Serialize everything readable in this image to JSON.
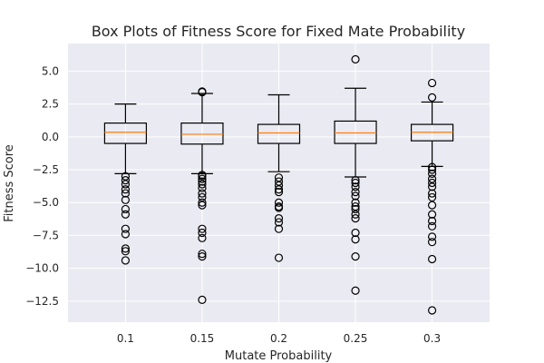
{
  "chart_data": {
    "type": "box",
    "title": "Box Plots of Fitness Score for Fixed Mate Probability",
    "xlabel": "Mutate Probability",
    "ylabel": "Fitness Score",
    "ylim": [
      -14.1,
      7.1
    ],
    "yticks": [
      5.0,
      2.5,
      0.0,
      -2.5,
      -5.0,
      -7.5,
      -10.0,
      -12.5
    ],
    "ytick_labels": [
      "5.0",
      "2.5",
      "0.0",
      "−2.5",
      "−5.0",
      "−7.5",
      "−10.0",
      "−12.5"
    ],
    "grid": true,
    "background": "#eaeaf2",
    "colors": {
      "box": "#000000",
      "median": "#ff7f0e",
      "grid": "#ffffff",
      "text": "#262626"
    },
    "categories": [
      "0.1",
      "0.15",
      "0.2",
      "0.25",
      "0.3"
    ],
    "boxes": [
      {
        "category": "0.1",
        "whisker_low": -2.8,
        "q1": -0.5,
        "median": 0.35,
        "q3": 1.05,
        "whisker_high": 2.5,
        "outliers": [
          -3.0,
          -3.3,
          -3.6,
          -4.0,
          -4.3,
          -4.8,
          -5.5,
          -5.9,
          -7.0,
          -7.4,
          -8.5,
          -8.7,
          -9.4
        ]
      },
      {
        "category": "0.15",
        "whisker_low": -2.8,
        "q1": -0.55,
        "median": 0.2,
        "q3": 1.05,
        "whisker_high": 3.3,
        "outliers": [
          3.4,
          3.45,
          -2.9,
          -3.0,
          -3.2,
          -3.4,
          -3.6,
          -3.9,
          -4.3,
          -4.6,
          -5.0,
          -5.2,
          -7.0,
          -7.3,
          -7.7,
          -8.9,
          -9.1,
          -12.4
        ]
      },
      {
        "category": "0.2",
        "whisker_low": -2.65,
        "q1": -0.5,
        "median": 0.3,
        "q3": 0.95,
        "whisker_high": 3.2,
        "outliers": [
          -3.1,
          -3.4,
          -3.7,
          -4.0,
          -4.2,
          -5.0,
          -5.3,
          -5.4,
          -6.2,
          -6.5,
          -7.0,
          -9.2
        ]
      },
      {
        "category": "0.25",
        "whisker_low": -3.05,
        "q1": -0.5,
        "median": 0.3,
        "q3": 1.2,
        "whisker_high": 3.7,
        "outliers": [
          5.9,
          -3.3,
          -3.5,
          -3.8,
          -4.2,
          -4.5,
          -5.0,
          -5.3,
          -5.5,
          -5.9,
          -6.2,
          -7.3,
          -7.8,
          -9.1,
          -11.7
        ]
      },
      {
        "category": "0.3",
        "whisker_low": -2.25,
        "q1": -0.3,
        "median": 0.35,
        "q3": 0.95,
        "whisker_high": 2.65,
        "outliers": [
          4.1,
          3.0,
          -2.3,
          -2.5,
          -2.8,
          -3.2,
          -3.5,
          -3.8,
          -4.3,
          -4.6,
          -5.2,
          -5.9,
          -6.4,
          -6.8,
          -7.6,
          -8.0,
          -9.3,
          -13.2
        ]
      }
    ]
  }
}
